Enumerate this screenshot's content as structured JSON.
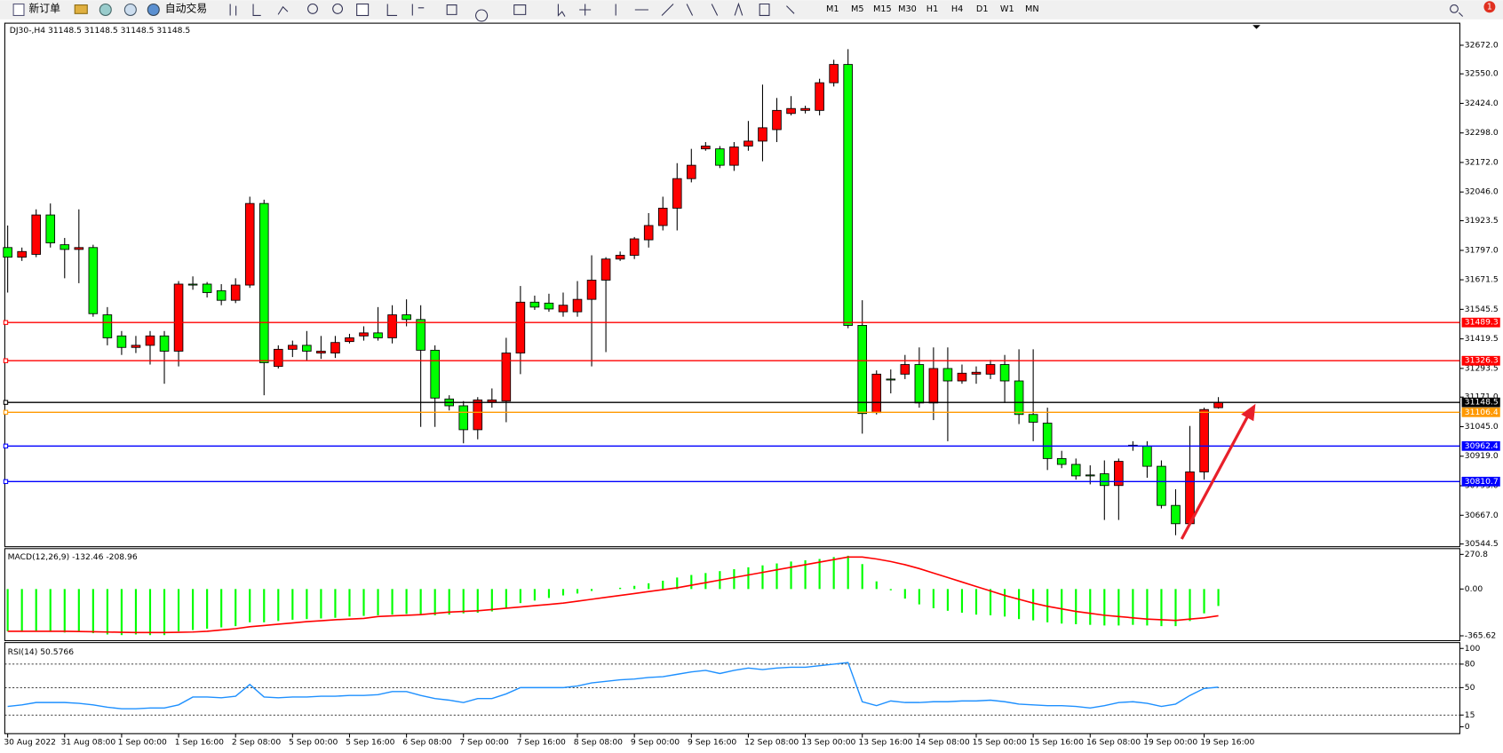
{
  "toolbar": {
    "new_order": "新订单",
    "auto_trade": "自动交易",
    "timeframes": [
      "M1",
      "M5",
      "M15",
      "M30",
      "H1",
      "H4",
      "D1",
      "W1",
      "MN"
    ],
    "badge": "1"
  },
  "chart_data": [
    {
      "type": "candlestick",
      "title": "DJ30-,H4 31148.5 31148.5 31148.5 31148.5",
      "up_color": "#ff0000",
      "down_color": "#00ff00",
      "categories": [
        "30 Aug 2022",
        null,
        null,
        null,
        "31 Aug 08:00",
        null,
        null,
        null,
        "1 Sep 00:00",
        null,
        null,
        null,
        "1 Sep 16:00",
        null,
        null,
        null,
        "2 Sep 08:00",
        null,
        null,
        null,
        "5 Sep 00:00",
        null,
        null,
        null,
        "5 Sep 16:00",
        null,
        null,
        null,
        "6 Sep 08:00",
        null,
        null,
        null,
        "7 Sep 00:00",
        null,
        null,
        null,
        "7 Sep 16:00",
        null,
        null,
        null,
        "8 Sep 08:00",
        null,
        null,
        null,
        "9 Sep 00:00",
        null,
        null,
        null,
        "9 Sep 16:00",
        null,
        null,
        null,
        "12 Sep 08:00",
        null,
        null,
        null,
        "13 Sep 00:00",
        null,
        null,
        null,
        "13 Sep 16:00",
        null,
        null,
        null,
        "14 Sep 08:00",
        null,
        null,
        null,
        "15 Sep 00:00",
        null,
        null,
        null,
        "15 Sep 16:00",
        null,
        null,
        null,
        "16 Sep 08:00",
        null,
        null,
        null,
        "19 Sep 00:00",
        null,
        null,
        null,
        "19 Sep 16:00",
        null
      ],
      "open": [
        31809,
        31768,
        31780,
        31948,
        31821,
        31801,
        31809,
        31522,
        31432,
        31383,
        31392,
        31432,
        31367,
        31653,
        31653,
        31625,
        31584,
        31649,
        31997,
        31302,
        31375,
        31392,
        31359,
        31359,
        31408,
        31432,
        31445,
        31424,
        31522,
        31502,
        31371,
        31163,
        31134,
        31032,
        31150,
        31154,
        31359,
        31576,
        31572,
        31535,
        31535,
        31588,
        31670,
        31760,
        31776,
        31842,
        31903,
        31977,
        32103,
        32230,
        32230,
        32160,
        32242,
        32263,
        32312,
        32381,
        32394,
        32394,
        32512,
        32590,
        31477,
        31105,
        31248,
        31269,
        31310,
        31146,
        31293,
        31240,
        31269,
        31269,
        31310,
        31240,
        31097,
        31060,
        30909,
        30884,
        30839,
        30844,
        30794,
        30966,
        30962,
        30876,
        30709,
        30631,
        30852,
        31126
      ],
      "high": [
        31903,
        31809,
        31972,
        31997,
        31850,
        31972,
        31821,
        31555,
        31453,
        31432,
        31453,
        31453,
        31666,
        31686,
        31662,
        31653,
        31678,
        32026,
        32013,
        31392,
        31412,
        31453,
        31432,
        31432,
        31441,
        31473,
        31555,
        31563,
        31588,
        31563,
        31392,
        31179,
        31154,
        31171,
        31208,
        31424,
        31645,
        31604,
        31612,
        31617,
        31666,
        31776,
        31768,
        31792,
        31854,
        31956,
        32026,
        32169,
        32230,
        32259,
        32242,
        32259,
        32349,
        32504,
        32447,
        32455,
        32414,
        32529,
        32610,
        32655,
        31584,
        31285,
        31289,
        31351,
        31383,
        31383,
        31383,
        31310,
        31302,
        31330,
        31351,
        31375,
        31375,
        31126,
        30942,
        30909,
        30880,
        30901,
        30909,
        30983,
        30983,
        30901,
        30778,
        31048,
        31126,
        31171
      ],
      "low": [
        31617,
        31752,
        31768,
        31809,
        31678,
        31657,
        31514,
        31392,
        31351,
        31359,
        31310,
        31228,
        31302,
        31629,
        31596,
        31563,
        31572,
        31637,
        31179,
        31293,
        31342,
        31326,
        31334,
        31338,
        31400,
        31412,
        31412,
        31400,
        31473,
        31044,
        31044,
        31114,
        30974,
        30991,
        31126,
        31064,
        31269,
        31543,
        31535,
        31514,
        31514,
        31302,
        31363,
        31752,
        31760,
        31809,
        31882,
        31882,
        32087,
        32222,
        32148,
        32136,
        32222,
        32177,
        32259,
        32373,
        32381,
        32373,
        32496,
        31465,
        31015,
        31097,
        31187,
        31248,
        31126,
        31073,
        30983,
        31228,
        31228,
        31248,
        31146,
        31056,
        30983,
        30860,
        30868,
        30819,
        30799,
        30647,
        30647,
        30942,
        30827,
        30696,
        30582,
        30623,
        30819,
        31122
      ],
      "close": [
        31768,
        31792,
        31948,
        31829,
        31801,
        31809,
        31527,
        31424,
        31383,
        31392,
        31432,
        31367,
        31653,
        31649,
        31617,
        31584,
        31649,
        31997,
        31318,
        31375,
        31392,
        31367,
        31367,
        31404,
        31424,
        31445,
        31424,
        31522,
        31502,
        31371,
        31167,
        31134,
        31032,
        31159,
        31159,
        31359,
        31576,
        31555,
        31547,
        31563,
        31588,
        31670,
        31760,
        31776,
        31846,
        31903,
        31977,
        32103,
        32160,
        32242,
        32160,
        32238,
        32263,
        32320,
        32394,
        32402,
        32402,
        32512,
        32590,
        31477,
        31101,
        31269,
        31244,
        31310,
        31146,
        31293,
        31240,
        31273,
        31277,
        31310,
        31240,
        31097,
        31064,
        30909,
        30884,
        30835,
        30835,
        30794,
        30897,
        30962,
        30876,
        30709,
        30631,
        30852,
        31118,
        31148.5
      ],
      "ylim": [
        30533,
        32762
      ],
      "yticks": [
        {
          "value": 32672,
          "label": "32672.0"
        },
        {
          "value": 32550,
          "label": "32550.0"
        },
        {
          "value": 32424,
          "label": "32424.0"
        },
        {
          "value": 32298,
          "label": "32298.0"
        },
        {
          "value": 32172,
          "label": "32172.0"
        },
        {
          "value": 32046,
          "label": "32046.0"
        },
        31923.5,
        {
          "value": 31797,
          "label": "31797.0"
        },
        31671.5,
        31545.5,
        31419.5,
        31293.5,
        {
          "value": 31171,
          "label": "31171.0"
        },
        {
          "value": 31045,
          "label": "31045.0"
        },
        {
          "value": 30919,
          "label": "30919.0"
        },
        {
          "value": 30793,
          "label": "30793.0"
        },
        {
          "value": 30667,
          "label": "30667.0"
        },
        30544.5
      ],
      "levels": [
        {
          "value": 31489.3,
          "label": "31489.3",
          "color": "#ff0000"
        },
        {
          "value": 31326.3,
          "label": "31326.3",
          "color": "#ff0000"
        },
        {
          "value": 31148.5,
          "label": "31148.5",
          "color": "#000000"
        },
        {
          "value": 31106.4,
          "label": "31106.4",
          "color": "#ff9900"
        },
        {
          "value": 30962.4,
          "label": "30962.4",
          "color": "#0000ff"
        },
        {
          "value": 30810.7,
          "label": "30810.7",
          "color": "#0000ff"
        }
      ]
    },
    {
      "type": "macd",
      "title": "MACD(12,26,9) -132.46 -208.96",
      "histogram": {
        "color": "#00ff00",
        "values": [
          -330,
          -335,
          -330,
          -335,
          -340,
          -335,
          -345,
          -355,
          -360,
          -355,
          -360,
          -360,
          -330,
          -320,
          -310,
          -300,
          -290,
          -260,
          -260,
          -250,
          -240,
          -235,
          -230,
          -225,
          -215,
          -210,
          -205,
          -200,
          -195,
          -200,
          -205,
          -200,
          -190,
          -185,
          -175,
          -150,
          -110,
          -90,
          -70,
          -50,
          -35,
          -15,
          0,
          10,
          25,
          45,
          65,
          90,
          110,
          125,
          140,
          155,
          170,
          185,
          200,
          215,
          225,
          235,
          250,
          260,
          195,
          60,
          -10,
          -75,
          -120,
          -150,
          -170,
          -185,
          -200,
          -205,
          -215,
          -235,
          -245,
          -260,
          -270,
          -275,
          -280,
          -285,
          -285,
          -280,
          -285,
          -290,
          -290,
          -250,
          -190,
          -132.46
        ]
      },
      "signal": {
        "color": "#ff0000",
        "values": [
          -330,
          -330,
          -330,
          -330,
          -330,
          -332,
          -334,
          -336,
          -338,
          -340,
          -340,
          -340,
          -338,
          -336,
          -330,
          -320,
          -310,
          -295,
          -285,
          -275,
          -265,
          -255,
          -248,
          -240,
          -235,
          -230,
          -215,
          -210,
          -205,
          -200,
          -190,
          -180,
          -175,
          -170,
          -160,
          -150,
          -140,
          -130,
          -120,
          -110,
          -95,
          -80,
          -65,
          -50,
          -35,
          -20,
          -5,
          10,
          30,
          50,
          70,
          90,
          110,
          130,
          150,
          170,
          190,
          210,
          230,
          250,
          250,
          235,
          215,
          190,
          160,
          125,
          90,
          55,
          20,
          -15,
          -50,
          -80,
          -110,
          -135,
          -155,
          -175,
          -190,
          -205,
          -215,
          -225,
          -235,
          -240,
          -245,
          -235,
          -225,
          -208.96
        ]
      },
      "ylim": [
        -403.5,
        316
      ],
      "yticks": [
        270.8,
        {
          "value": 0,
          "label": "0.00"
        },
        -365.62
      ]
    },
    {
      "type": "line",
      "title": "RSI(14) 50.5766",
      "color": "#1e90ff",
      "values": [
        26,
        28,
        31,
        31,
        31,
        30,
        28,
        25,
        23,
        23,
        24,
        24,
        28,
        38,
        38,
        37,
        39,
        54,
        38,
        37,
        38,
        38,
        39,
        39,
        40,
        40,
        41,
        45,
        45,
        40,
        36,
        34,
        31,
        36,
        36,
        42,
        50,
        50,
        50,
        50,
        52,
        56,
        58,
        60,
        61,
        63,
        64,
        67,
        70,
        72,
        68,
        72,
        75,
        73,
        75,
        76,
        76,
        78,
        80,
        82,
        32,
        27,
        33,
        31,
        31,
        32,
        32,
        33,
        33,
        34,
        32,
        29,
        28,
        27,
        27,
        26,
        24,
        27,
        31,
        32,
        30,
        26,
        29,
        40,
        49,
        50.5766
      ],
      "ylim": [
        -8.75,
        107.5
      ],
      "yticks": [
        100,
        80,
        50,
        15,
        0
      ]
    }
  ]
}
